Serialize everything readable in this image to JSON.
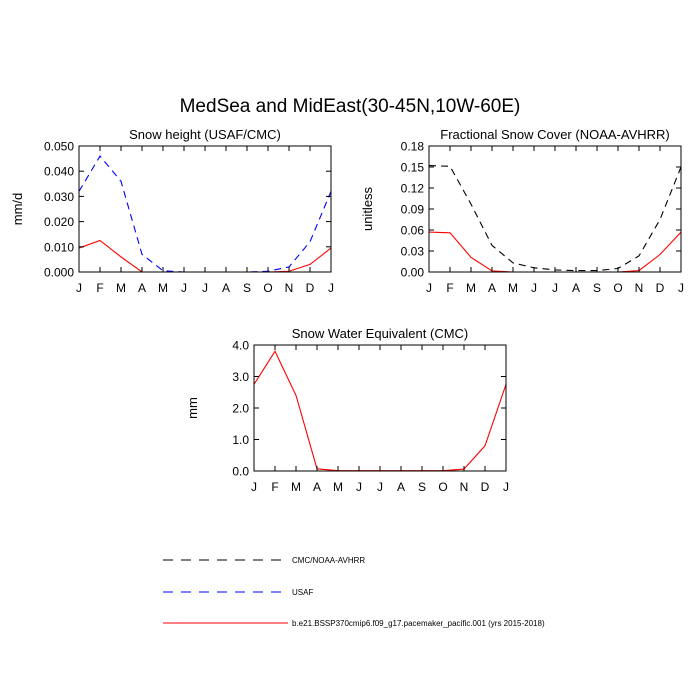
{
  "main_title": "MedSea and MidEast(30-45N,10W-60E)",
  "months": [
    "J",
    "F",
    "M",
    "A",
    "M",
    "J",
    "J",
    "A",
    "S",
    "O",
    "N",
    "D",
    "J"
  ],
  "legend": [
    {
      "label": "CMC/NOAA-AVHRR",
      "color": "#000000",
      "style": "dashed"
    },
    {
      "label": "USAF",
      "color": "#0000ff",
      "style": "dashed"
    },
    {
      "label": "b.e21.BSSP370cmip6.f09_g17.pacemaker_pacific.001 (yrs 2015-2018)",
      "color": "#ff0000",
      "style": "solid"
    }
  ],
  "chart_data": [
    {
      "type": "line",
      "title": "Snow height (USAF/CMC)",
      "xlabel": "",
      "ylabel": "mm/d",
      "ylim": [
        0,
        0.05
      ],
      "yticks": [
        "0.000",
        "0.010",
        "0.020",
        "0.030",
        "0.040",
        "0.050"
      ],
      "categories": [
        "J",
        "F",
        "M",
        "A",
        "M",
        "J",
        "J",
        "A",
        "S",
        "O",
        "N",
        "D",
        "J"
      ],
      "series": [
        {
          "name": "USAF",
          "color": "#0000ff",
          "dash": true,
          "values": [
            0.032,
            0.046,
            0.036,
            0.007,
            0.0005,
            0,
            0,
            0,
            0,
            0.0003,
            0.002,
            0.012,
            0.032
          ]
        },
        {
          "name": "b.e21.BSSP370cmip6.f09_g17.pacemaker_pacific.001 (yrs 2015-2018)",
          "color": "#ff0000",
          "dash": false,
          "values": [
            0.0095,
            0.0125,
            0.006,
            0.0,
            0,
            0,
            0,
            0,
            0,
            0,
            0.0003,
            0.003,
            0.0095
          ]
        }
      ]
    },
    {
      "type": "line",
      "title": "Fractional Snow Cover (NOAA-AVHRR)",
      "xlabel": "",
      "ylabel": "unitless",
      "ylim": [
        0,
        0.18
      ],
      "yticks": [
        "0.00",
        "0.03",
        "0.06",
        "0.09",
        "0.12",
        "0.15",
        "0.18"
      ],
      "categories": [
        "J",
        "F",
        "M",
        "A",
        "M",
        "J",
        "J",
        "A",
        "S",
        "O",
        "N",
        "D",
        "J"
      ],
      "series": [
        {
          "name": "CMC/NOAA-AVHRR",
          "color": "#000000",
          "dash": true,
          "values": [
            0.152,
            0.151,
            0.097,
            0.038,
            0.013,
            0.006,
            0.003,
            0.002,
            0.002,
            0.005,
            0.023,
            0.075,
            0.15
          ]
        },
        {
          "name": "b.e21.BSSP370cmip6.f09_g17.pacemaker_pacific.001 (yrs 2015-2018)",
          "color": "#ff0000",
          "dash": false,
          "values": [
            0.057,
            0.056,
            0.021,
            0.0015,
            0,
            0,
            0,
            0,
            0,
            0,
            0.002,
            0.025,
            0.057
          ]
        }
      ]
    },
    {
      "type": "line",
      "title": "Snow Water Equivalent (CMC)",
      "xlabel": "",
      "ylabel": "mm",
      "ylim": [
        0,
        4.0
      ],
      "yticks": [
        "0.0",
        "1.0",
        "2.0",
        "3.0",
        "4.0"
      ],
      "categories": [
        "J",
        "F",
        "M",
        "A",
        "M",
        "J",
        "J",
        "A",
        "S",
        "O",
        "N",
        "D",
        "J"
      ],
      "series": [
        {
          "name": "CMC/NOAA-AVHRR",
          "color": "#000000",
          "dash": true,
          "values": [
            0,
            0,
            0,
            0,
            0,
            0,
            0,
            0,
            0,
            0,
            0,
            0,
            0
          ]
        },
        {
          "name": "b.e21.BSSP370cmip6.f09_g17.pacemaker_pacific.001 (yrs 2015-2018)",
          "color": "#ff0000",
          "dash": false,
          "values": [
            2.75,
            3.8,
            2.4,
            0.07,
            0.01,
            0.01,
            0.01,
            0.01,
            0.01,
            0.01,
            0.06,
            0.8,
            2.75
          ]
        }
      ]
    }
  ]
}
